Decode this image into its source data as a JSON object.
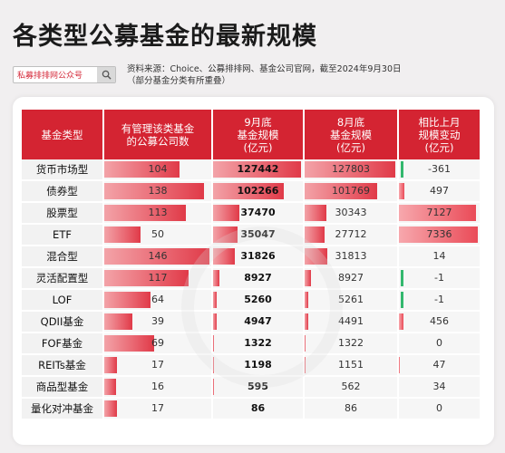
{
  "header": {
    "title": "各类型公募基金的最新规模",
    "search_text": "私募排排网公众号",
    "source_line1": "资料来源：Choice、公募排排网、基金公司官网，截至2024年9月30日",
    "source_line2": "（部分基金分类有所重叠）"
  },
  "colors": {
    "accent": "#d42432",
    "bar": "#e84f5c",
    "negative": "#33b86e"
  },
  "table": {
    "headers": [
      "基金类型",
      "有管理该类基金\n的公募公司数",
      "9月底\n基金规模\n(亿元)",
      "8月底\n基金规模\n(亿元)",
      "相比上月\n规模变动\n(亿元)"
    ],
    "rows": [
      {
        "type": "货币市场型",
        "companies": "104",
        "sep": "127442",
        "aug": "127803",
        "change": "-361"
      },
      {
        "type": "债券型",
        "companies": "138",
        "sep": "102266",
        "aug": "101769",
        "change": "497"
      },
      {
        "type": "股票型",
        "companies": "113",
        "sep": "37470",
        "aug": "30343",
        "change": "7127"
      },
      {
        "type": "ETF",
        "companies": "50",
        "sep": "35047",
        "aug": "27712",
        "change": "7336"
      },
      {
        "type": "混合型",
        "companies": "146",
        "sep": "31826",
        "aug": "31813",
        "change": "14"
      },
      {
        "type": "灵活配置型",
        "companies": "117",
        "sep": "8927",
        "aug": "8927",
        "change": "-1"
      },
      {
        "type": "LOF",
        "companies": "64",
        "sep": "5260",
        "aug": "5261",
        "change": "-1"
      },
      {
        "type": "QDII基金",
        "companies": "39",
        "sep": "4947",
        "aug": "4491",
        "change": "456"
      },
      {
        "type": "FOF基金",
        "companies": "69",
        "sep": "1322",
        "aug": "1322",
        "change": "0"
      },
      {
        "type": "REITs基金",
        "companies": "17",
        "sep": "1198",
        "aug": "1151",
        "change": "47"
      },
      {
        "type": "商品型基金",
        "companies": "16",
        "sep": "595",
        "aug": "562",
        "change": "34"
      },
      {
        "type": "量化对冲基金",
        "companies": "17",
        "sep": "86",
        "aug": "86",
        "change": "0"
      }
    ]
  }
}
